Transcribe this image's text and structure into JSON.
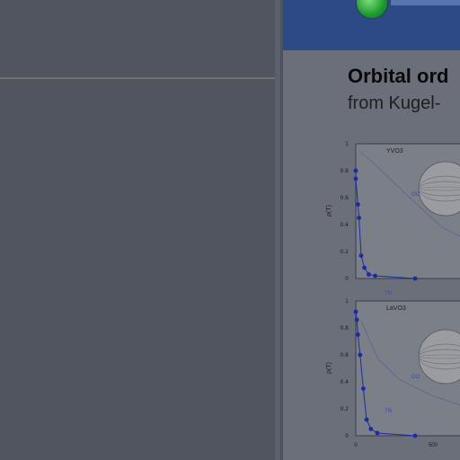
{
  "slide": {
    "title": "Orbital ord",
    "subtitle": "from Kugel-"
  },
  "chart_data": [
    {
      "type": "line",
      "panel_label": "YVO3",
      "ylabel": "ρ(T)",
      "yticks": [
        "1",
        "0.8",
        "0.6",
        "0.4",
        "0.2",
        "0"
      ],
      "ylim": [
        0,
        1
      ],
      "annotations": [
        "OO",
        "TN"
      ],
      "series": [
        {
          "points": [
            {
              "x": 0.0,
              "y": 0.8
            },
            {
              "x": 0.0,
              "y": 0.74
            },
            {
              "x": 0.02,
              "y": 0.55
            },
            {
              "x": 0.03,
              "y": 0.45
            },
            {
              "x": 0.05,
              "y": 0.17
            },
            {
              "x": 0.08,
              "y": 0.08
            },
            {
              "x": 0.12,
              "y": 0.03
            },
            {
              "x": 0.18,
              "y": 0.02
            },
            {
              "x": 0.55,
              "y": 0.0
            }
          ]
        }
      ],
      "reference_curve": [
        {
          "x": 0.03,
          "y": 0.95
        },
        {
          "x": 0.2,
          "y": 0.83
        },
        {
          "x": 0.5,
          "y": 0.6
        },
        {
          "x": 0.8,
          "y": 0.38
        },
        {
          "x": 1.0,
          "y": 0.3
        }
      ]
    },
    {
      "type": "line",
      "panel_label": "LaVO3",
      "ylabel": "ρ(T)",
      "yticks": [
        "1",
        "0.8",
        "0.6",
        "0.4",
        "0.2",
        "0"
      ],
      "xticks": [
        "0",
        "500"
      ],
      "ylim": [
        0,
        1
      ],
      "annotations": [
        "OO",
        "TN"
      ],
      "series": [
        {
          "points": [
            {
              "x": 0.0,
              "y": 0.92
            },
            {
              "x": 0.01,
              "y": 0.86
            },
            {
              "x": 0.02,
              "y": 0.75
            },
            {
              "x": 0.04,
              "y": 0.6
            },
            {
              "x": 0.07,
              "y": 0.35
            },
            {
              "x": 0.1,
              "y": 0.12
            },
            {
              "x": 0.14,
              "y": 0.05
            },
            {
              "x": 0.2,
              "y": 0.02
            },
            {
              "x": 0.55,
              "y": 0.0
            }
          ]
        }
      ],
      "reference_curve": [
        {
          "x": 0.05,
          "y": 0.85
        },
        {
          "x": 0.2,
          "y": 0.58
        },
        {
          "x": 0.4,
          "y": 0.42
        },
        {
          "x": 0.7,
          "y": 0.3
        },
        {
          "x": 1.0,
          "y": 0.22
        }
      ]
    }
  ],
  "colors": {
    "series": "#1b2aa6",
    "reference": "#5a6690",
    "topbar": "#2e4a86",
    "accent_green": "#1c9a2c"
  },
  "icons": {
    "status_dot": "green-circle-icon",
    "sphere": "sphere-icon"
  }
}
